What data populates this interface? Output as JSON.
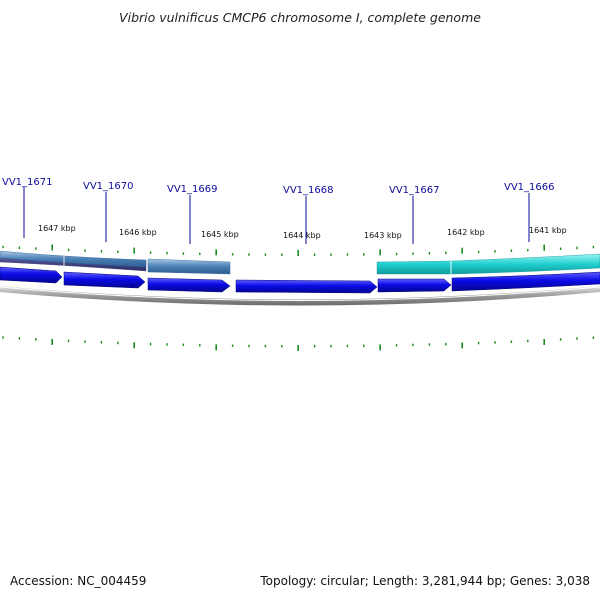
{
  "title": "Vibrio vulnificus CMCP6 chromosome I, complete genome",
  "footer": {
    "accession": "Accession: NC_004459",
    "summary": "Topology: circular; Length: 3,281,944 bp; Genes: 3,038"
  },
  "colors": {
    "gene_label": "#0b0b9a",
    "cds": "#0a0ae6",
    "cds_dark": "#06069a",
    "tick": "#1a8a1a",
    "backbone": "#8c8c8c",
    "feature_purple": "#4a4a8c",
    "feature_steel": "#4a7fb5",
    "feature_cyan": "#20d0d0"
  },
  "genes": [
    "VV1_1671",
    "VV1_1670",
    "VV1_1669",
    "VV1_1668",
    "VV1_1667",
    "VV1_1666"
  ],
  "kbp_labels": [
    "1647 kbp",
    "1646 kbp",
    "1645 kbp",
    "1644 kbp",
    "1643 kbp",
    "1642 kbp",
    "1641 kbp"
  ]
}
